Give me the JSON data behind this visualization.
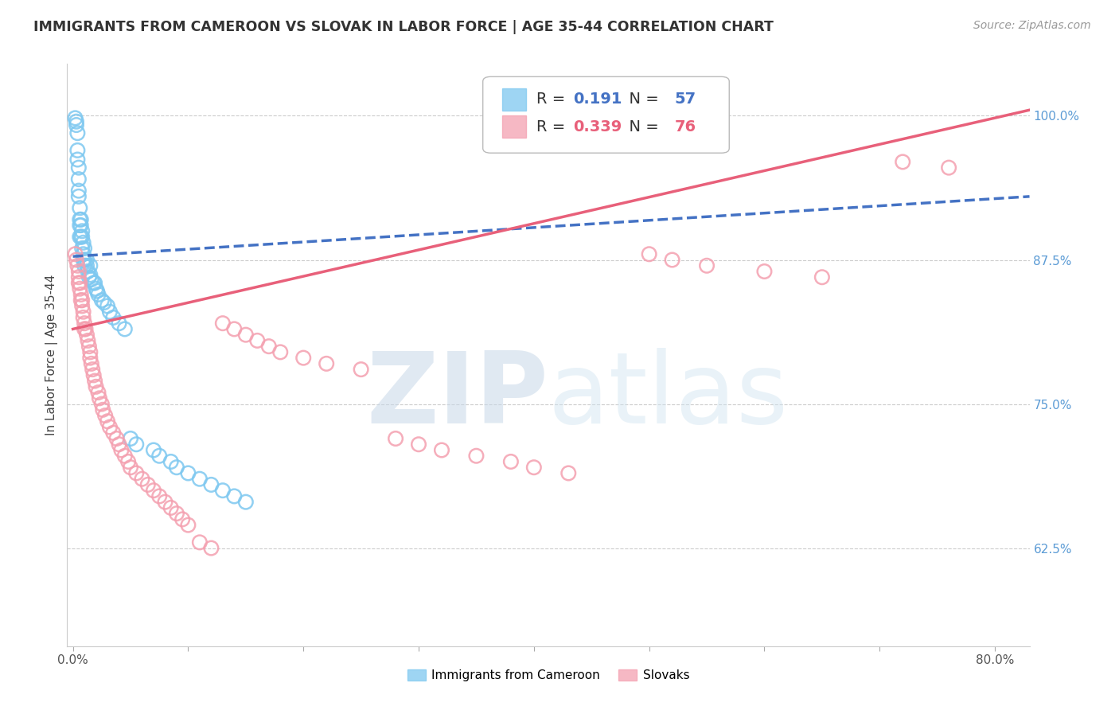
{
  "title": "IMMIGRANTS FROM CAMEROON VS SLOVAK IN LABOR FORCE | AGE 35-44 CORRELATION CHART",
  "source": "Source: ZipAtlas.com",
  "ylabel": "In Labor Force | Age 35-44",
  "xlim": [
    -0.005,
    0.83
  ],
  "ylim": [
    0.54,
    1.045
  ],
  "x_ticks": [
    0.0,
    0.1,
    0.2,
    0.3,
    0.4,
    0.5,
    0.6,
    0.7,
    0.8
  ],
  "x_tick_labels": [
    "0.0%",
    "",
    "",
    "",
    "",
    "",
    "",
    "",
    "80.0%"
  ],
  "y_tick_positions": [
    0.625,
    0.75,
    0.875,
    1.0
  ],
  "y_tick_labels": [
    "62.5%",
    "75.0%",
    "87.5%",
    "100.0%"
  ],
  "legend_R1": "0.191",
  "legend_N1": "57",
  "legend_R2": "0.339",
  "legend_N2": "76",
  "legend_label1": "Immigrants from Cameroon",
  "legend_label2": "Slovaks",
  "color_blue": "#7EC8F0",
  "color_pink": "#F4A0B0",
  "color_blue_line": "#4472C4",
  "color_pink_line": "#E8607A",
  "blue_scatter_x": [
    0.002,
    0.003,
    0.003,
    0.004,
    0.004,
    0.004,
    0.005,
    0.005,
    0.005,
    0.005,
    0.006,
    0.006,
    0.006,
    0.006,
    0.007,
    0.007,
    0.007,
    0.008,
    0.008,
    0.008,
    0.009,
    0.009,
    0.009,
    0.01,
    0.01,
    0.01,
    0.012,
    0.012,
    0.013,
    0.014,
    0.015,
    0.015,
    0.016,
    0.018,
    0.019,
    0.02,
    0.021,
    0.022,
    0.025,
    0.027,
    0.03,
    0.032,
    0.035,
    0.04,
    0.045,
    0.05,
    0.055,
    0.07,
    0.075,
    0.085,
    0.09,
    0.1,
    0.11,
    0.12,
    0.13,
    0.14,
    0.15
  ],
  "blue_scatter_y": [
    0.998,
    0.992,
    0.995,
    0.985,
    0.97,
    0.962,
    0.955,
    0.945,
    0.935,
    0.93,
    0.92,
    0.91,
    0.905,
    0.895,
    0.91,
    0.905,
    0.895,
    0.9,
    0.895,
    0.885,
    0.89,
    0.88,
    0.875,
    0.885,
    0.875,
    0.87,
    0.875,
    0.87,
    0.865,
    0.86,
    0.87,
    0.862,
    0.858,
    0.855,
    0.855,
    0.85,
    0.848,
    0.845,
    0.84,
    0.838,
    0.835,
    0.83,
    0.825,
    0.82,
    0.815,
    0.72,
    0.715,
    0.71,
    0.705,
    0.7,
    0.695,
    0.69,
    0.685,
    0.68,
    0.675,
    0.67,
    0.665
  ],
  "pink_scatter_x": [
    0.002,
    0.003,
    0.004,
    0.005,
    0.005,
    0.005,
    0.006,
    0.006,
    0.007,
    0.007,
    0.008,
    0.008,
    0.009,
    0.009,
    0.01,
    0.01,
    0.011,
    0.012,
    0.013,
    0.014,
    0.015,
    0.015,
    0.016,
    0.017,
    0.018,
    0.019,
    0.02,
    0.022,
    0.023,
    0.025,
    0.026,
    0.028,
    0.03,
    0.032,
    0.035,
    0.038,
    0.04,
    0.042,
    0.045,
    0.048,
    0.05,
    0.055,
    0.06,
    0.065,
    0.07,
    0.075,
    0.08,
    0.085,
    0.09,
    0.095,
    0.1,
    0.11,
    0.12,
    0.13,
    0.14,
    0.15,
    0.16,
    0.17,
    0.18,
    0.2,
    0.22,
    0.25,
    0.28,
    0.3,
    0.32,
    0.35,
    0.38,
    0.4,
    0.43,
    0.5,
    0.52,
    0.55,
    0.6,
    0.65,
    0.72,
    0.76
  ],
  "pink_scatter_y": [
    0.88,
    0.875,
    0.87,
    0.865,
    0.86,
    0.855,
    0.855,
    0.85,
    0.845,
    0.84,
    0.84,
    0.835,
    0.83,
    0.825,
    0.82,
    0.815,
    0.815,
    0.81,
    0.805,
    0.8,
    0.795,
    0.79,
    0.785,
    0.78,
    0.775,
    0.77,
    0.765,
    0.76,
    0.755,
    0.75,
    0.745,
    0.74,
    0.735,
    0.73,
    0.725,
    0.72,
    0.715,
    0.71,
    0.705,
    0.7,
    0.695,
    0.69,
    0.685,
    0.68,
    0.675,
    0.67,
    0.665,
    0.66,
    0.655,
    0.65,
    0.645,
    0.63,
    0.625,
    0.82,
    0.815,
    0.81,
    0.805,
    0.8,
    0.795,
    0.79,
    0.785,
    0.78,
    0.72,
    0.715,
    0.71,
    0.705,
    0.7,
    0.695,
    0.69,
    0.88,
    0.875,
    0.87,
    0.865,
    0.86,
    0.96,
    0.955
  ],
  "blue_trend_x": [
    0.0,
    0.83
  ],
  "blue_trend_y": [
    0.878,
    0.93
  ],
  "pink_trend_x": [
    0.0,
    0.83
  ],
  "pink_trend_y": [
    0.815,
    1.005
  ]
}
